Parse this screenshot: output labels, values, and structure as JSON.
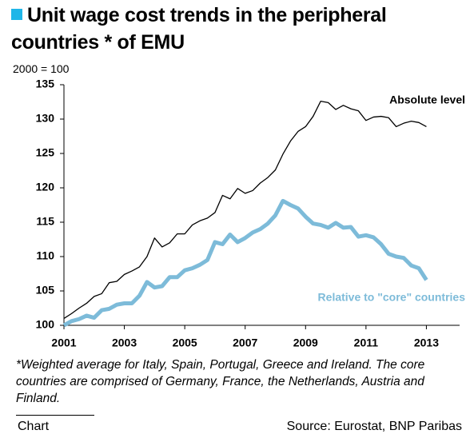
{
  "chart_data": {
    "type": "line",
    "title": "Unit wage cost trends in the peripheral countries * of EMU",
    "subtitle": "2000 = 100",
    "note": "*Weighted average for Italy, Spain, Portugal, Greece and  Ireland. The core countries are comprised of Germany, France, the Netherlands, Austria and Finland.",
    "footer_label": "Chart",
    "source": "Source: Eurostat, BNP Paribas",
    "x": [
      2001,
      2001.25,
      2001.5,
      2001.75,
      2002,
      2002.25,
      2002.5,
      2002.75,
      2003,
      2003.25,
      2003.5,
      2003.75,
      2004,
      2004.25,
      2004.5,
      2004.75,
      2005,
      2005.25,
      2005.5,
      2005.75,
      2006,
      2006.25,
      2006.5,
      2006.75,
      2007,
      2007.25,
      2007.5,
      2007.75,
      2008,
      2008.25,
      2008.5,
      2008.75,
      2009,
      2009.25,
      2009.5,
      2009.75,
      2010,
      2010.25,
      2010.5,
      2010.75,
      2011,
      2011.25,
      2011.5,
      2011.75,
      2012,
      2012.25,
      2012.5,
      2012.75,
      2013
    ],
    "series": [
      {
        "name": "Absolute level",
        "color": "#000000",
        "values": [
          101.0,
          101.7,
          102.5,
          103.2,
          104.2,
          104.6,
          106.2,
          106.4,
          107.4,
          107.9,
          108.5,
          110.0,
          112.7,
          111.4,
          112.0,
          113.3,
          113.3,
          114.6,
          115.2,
          115.6,
          116.4,
          118.9,
          118.4,
          119.9,
          119.2,
          119.6,
          120.7,
          121.5,
          122.6,
          124.9,
          126.8,
          128.2,
          128.9,
          130.4,
          132.6,
          132.4,
          131.4,
          132.0,
          131.5,
          131.2,
          129.8,
          130.3,
          130.4,
          130.2,
          128.9,
          129.4,
          129.7,
          129.5,
          128.9
        ]
      },
      {
        "name": "Relative to \"core\" countries",
        "color": "#7dbbd9",
        "values": [
          100.0,
          100.6,
          100.9,
          101.4,
          101.1,
          102.2,
          102.4,
          103.0,
          103.2,
          103.2,
          104.3,
          106.3,
          105.5,
          105.7,
          107.0,
          107.0,
          108.0,
          108.3,
          108.8,
          109.5,
          112.1,
          111.8,
          113.2,
          112.1,
          112.7,
          113.5,
          114.0,
          114.8,
          116.0,
          118.1,
          117.5,
          117.0,
          115.8,
          114.8,
          114.6,
          114.2,
          114.9,
          114.2,
          114.3,
          112.9,
          113.1,
          112.8,
          111.8,
          110.4,
          110.0,
          109.8,
          108.7,
          108.3,
          106.6
        ]
      }
    ],
    "xlim": [
      2001,
      2014.1
    ],
    "xticks": [
      2001,
      2003,
      2005,
      2007,
      2009,
      2011,
      2013
    ],
    "ylim": [
      100,
      135
    ],
    "yticks": [
      100,
      105,
      110,
      115,
      120,
      125,
      130,
      135
    ],
    "grid": false
  }
}
